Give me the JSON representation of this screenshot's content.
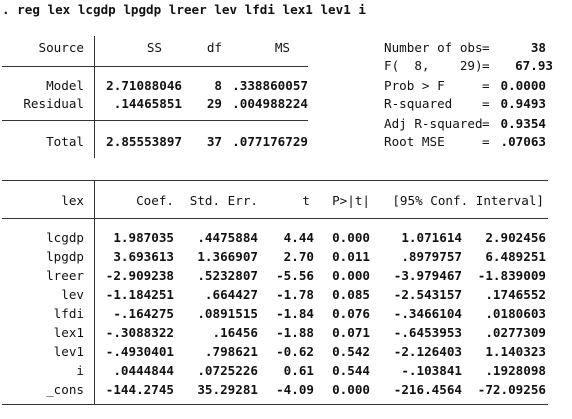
{
  "command": ". reg lex lcgdp lpgdp lreer lev lfdi lex1 lev1 i",
  "anova": {
    "headers": {
      "source": "Source",
      "ss": "SS",
      "df": "df",
      "ms": "MS"
    },
    "rows": [
      {
        "source": "Model",
        "ss": "2.71088046",
        "df": "8",
        "ms": ".338860057"
      },
      {
        "source": "Residual",
        "ss": ".14465851",
        "df": "29",
        "ms": ".004988224"
      }
    ],
    "total": {
      "source": "Total",
      "ss": "2.85553897",
      "df": "37",
      "ms": ".077176729"
    }
  },
  "stats": [
    {
      "label": "Number of obs",
      "eq": "=",
      "value": "38"
    },
    {
      "label": "F(  8,    29)",
      "eq": "=",
      "value": "67.93"
    },
    {
      "label": "Prob > F",
      "eq": "=",
      "value": "0.0000"
    },
    {
      "label": "R-squared",
      "eq": "=",
      "value": "0.9493"
    },
    {
      "label": "Adj R-squared",
      "eq": "=",
      "value": "0.9354"
    },
    {
      "label": "Root MSE",
      "eq": "=",
      "value": ".07063"
    }
  ],
  "coef": {
    "headers": {
      "var": "lex",
      "coef": "Coef.",
      "se": "Std. Err.",
      "t": "t",
      "p": "P>|t|",
      "ci": "[95% Conf. Interval]"
    },
    "rows": [
      {
        "var": "lcgdp",
        "coef": "1.987035",
        "se": ".4475884",
        "t": "4.44",
        "p": "0.000",
        "lo": "1.071614",
        "hi": "2.902456"
      },
      {
        "var": "lpgdp",
        "coef": "3.693613",
        "se": "1.366907",
        "t": "2.70",
        "p": "0.011",
        "lo": ".8979757",
        "hi": "6.489251"
      },
      {
        "var": "lreer",
        "coef": "-2.909238",
        "se": ".5232807",
        "t": "-5.56",
        "p": "0.000",
        "lo": "-3.979467",
        "hi": "-1.839009"
      },
      {
        "var": "lev",
        "coef": "-1.184251",
        "se": ".664427",
        "t": "-1.78",
        "p": "0.085",
        "lo": "-2.543157",
        "hi": ".1746552"
      },
      {
        "var": "lfdi",
        "coef": "-.164275",
        "se": ".0891515",
        "t": "-1.84",
        "p": "0.076",
        "lo": "-.3466104",
        "hi": ".0180603"
      },
      {
        "var": "lex1",
        "coef": "-.3088322",
        "se": ".16456",
        "t": "-1.88",
        "p": "0.071",
        "lo": "-.6453953",
        "hi": ".0277309"
      },
      {
        "var": "lev1",
        "coef": "-.4930401",
        "se": ".798621",
        "t": "-0.62",
        "p": "0.542",
        "lo": "-2.126403",
        "hi": "1.140323"
      },
      {
        "var": "i",
        "coef": ".0444844",
        "se": ".0725226",
        "t": "0.61",
        "p": "0.544",
        "lo": "-.103841",
        "hi": ".1928098"
      },
      {
        "var": "_cons",
        "coef": "-144.2745",
        "se": "35.29281",
        "t": "-4.09",
        "p": "0.000",
        "lo": "-216.4564",
        "hi": "-72.09256"
      }
    ]
  }
}
